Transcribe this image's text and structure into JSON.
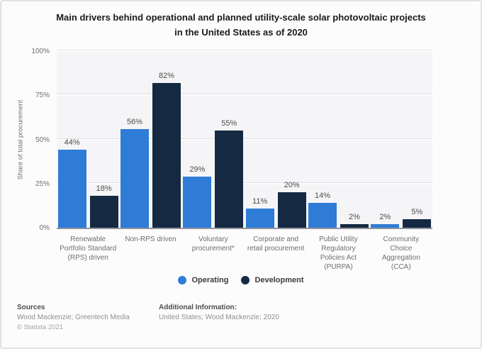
{
  "title": {
    "line1": "Main drivers behind operational and planned utility-scale solar photovoltaic projects",
    "line2": "in the United States as of 2020"
  },
  "chart_data": {
    "type": "bar",
    "title": "Main drivers behind operational and planned utility-scale solar photovoltaic projects in the United States as of 2020",
    "xlabel": "",
    "ylabel": "Share of total procurement",
    "ylim": [
      0,
      100
    ],
    "yticks": [
      "0%",
      "25%",
      "50%",
      "75%",
      "100%"
    ],
    "ytick_values": [
      0,
      25,
      50,
      75,
      100
    ],
    "grid": true,
    "legend_position": "bottom",
    "categories": [
      "Renewable Portfolio Standard (RPS) driven",
      "Non-RPS driven",
      "Voluntary procurement*",
      "Corporate and retail procurement",
      "Public Utility Regulatory Policies Act (PURPA)",
      "Community Choice Aggregation (CCA)"
    ],
    "series": [
      {
        "name": "Operating",
        "color": "#2e7cd6",
        "values": [
          44,
          56,
          29,
          11,
          14,
          2
        ]
      },
      {
        "name": "Development",
        "color": "#152a42",
        "values": [
          18,
          82,
          55,
          20,
          2,
          5
        ]
      }
    ],
    "value_suffix": "%"
  },
  "footer": {
    "sources_heading": "Sources",
    "sources_text": "Wood Mackenzie; Greentech Media",
    "copyright": "© Statista 2021",
    "additional_heading": "Additional Information:",
    "additional_text": "United States; Wood Mackenzie; 2020"
  }
}
